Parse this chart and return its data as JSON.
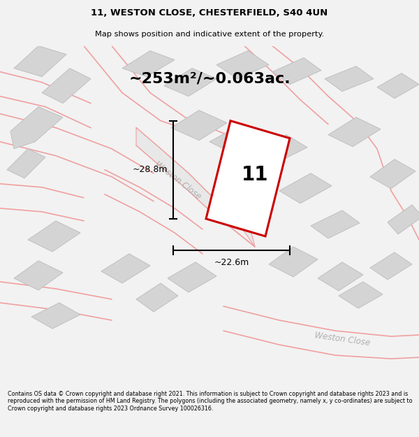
{
  "title_line1": "11, WESTON CLOSE, CHESTERFIELD, S40 4UN",
  "title_line2": "Map shows position and indicative extent of the property.",
  "area_text": "~253m²/~0.063ac.",
  "label_number": "11",
  "dim_height": "~28.8m",
  "dim_width": "~22.6m",
  "street_label1": "Weston Close",
  "street_label2": "Weston Close",
  "footer_text": "Contains OS data © Crown copyright and database right 2021. This information is subject to Crown copyright and database rights 2023 and is reproduced with the permission of HM Land Registry. The polygons (including the associated geometry, namely x, y co-ordinates) are subject to Crown copyright and database rights 2023 Ordnance Survey 100026316.",
  "bg_color": "#f2f2f2",
  "map_bg": "#ffffff",
  "plot_fill": "#ffffff",
  "plot_edge": "#cc0000",
  "road_color": "#f0a0a0",
  "building_fill": "#d4d4d4",
  "building_edge": "#c0c0c0",
  "road_fill": "#e8e8e8",
  "dim_color": "#000000",
  "text_gray": "#b0b0b0"
}
